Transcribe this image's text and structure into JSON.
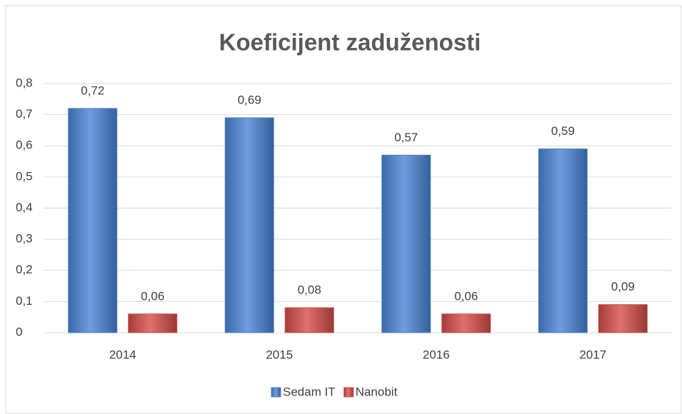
{
  "chart_data": {
    "type": "bar",
    "title": "Koeficijent zaduženosti",
    "categories": [
      "2014",
      "2015",
      "2016",
      "2017"
    ],
    "series": [
      {
        "name": "Sedam IT",
        "color": "#4f81bd",
        "values": [
          0.72,
          0.69,
          0.57,
          0.59
        ],
        "value_labels": [
          "0,72",
          "0,69",
          "0,57",
          "0,59"
        ]
      },
      {
        "name": "Nanobit",
        "color": "#c0504d",
        "values": [
          0.06,
          0.08,
          0.06,
          0.09
        ],
        "value_labels": [
          "0,06",
          "0,08",
          "0,06",
          "0,09"
        ]
      }
    ],
    "ylim": [
      0,
      0.8
    ],
    "yticks": [
      0,
      {
        "value": 0.1,
        "label": "0,1"
      },
      {
        "value": 0.2,
        "label": "0,2"
      },
      {
        "value": 0.3,
        "label": "0,3"
      },
      {
        "value": 0.4,
        "label": "0,4"
      },
      {
        "value": 0.5,
        "label": "0,5"
      },
      {
        "value": 0.6,
        "label": "0,6"
      },
      {
        "value": 0.7,
        "label": "0,7"
      },
      {
        "value": 0.8,
        "label": "0,8"
      }
    ],
    "grid": true,
    "legend": "bottom"
  }
}
